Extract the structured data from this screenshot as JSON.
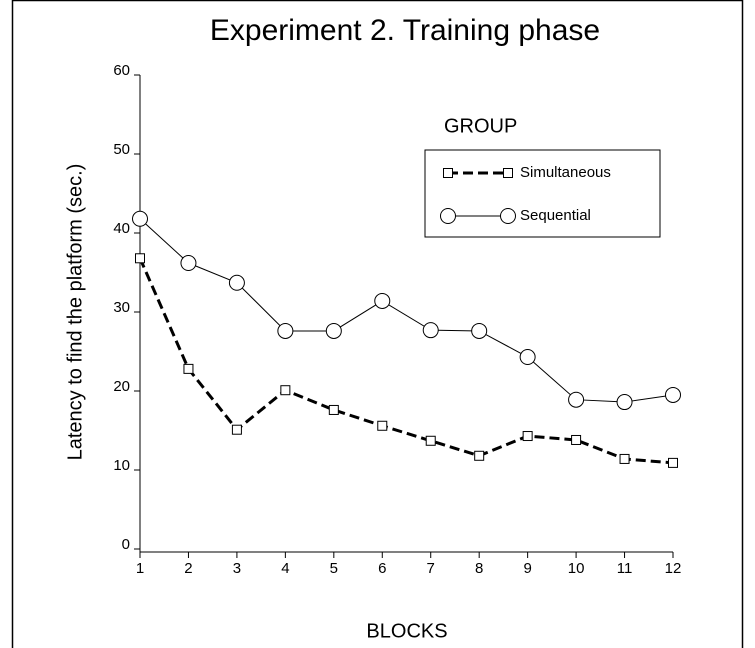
{
  "chart_data": {
    "type": "line",
    "title": "Experiment 2. Training phase",
    "x_label": "BLOCKS",
    "y_label": "Latency to find the platform (sec.)",
    "legend_title": "GROUP",
    "x": [
      1,
      2,
      3,
      4,
      5,
      6,
      7,
      8,
      9,
      10,
      11,
      12
    ],
    "series": [
      {
        "name": "Simultaneous",
        "color": "#000000",
        "marker": "square",
        "line_style": "dashed",
        "values": [
          36.8,
          22.8,
          15.1,
          20.1,
          17.6,
          15.6,
          13.7,
          11.8,
          14.3,
          13.8,
          11.4,
          10.9
        ]
      },
      {
        "name": "Sequential",
        "color": "#000000",
        "marker": "circle",
        "line_style": "solid",
        "values": [
          41.8,
          36.2,
          33.7,
          27.6,
          27.6,
          31.4,
          27.7,
          27.6,
          24.3,
          18.9,
          18.6,
          19.5
        ]
      }
    ],
    "xlim": [
      1,
      12
    ],
    "xticks": [
      1,
      2,
      3,
      4,
      5,
      6,
      7,
      8,
      9,
      10,
      11,
      12
    ],
    "ylim": [
      0,
      60
    ],
    "yticks": [
      0,
      10,
      20,
      30,
      40,
      50,
      60
    ],
    "grid": false
  }
}
